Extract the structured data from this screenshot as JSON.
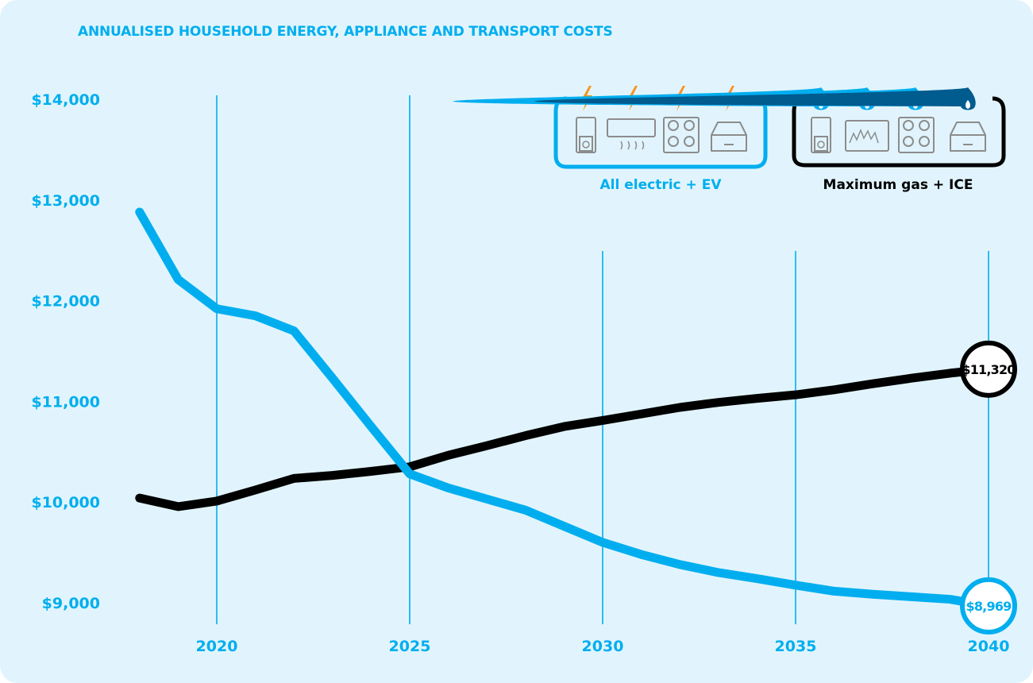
{
  "chart_data": {
    "type": "line",
    "title": "ANNUALISED HOUSEHOLD ENERGY, APPLIANCE AND TRANSPORT COSTS",
    "xlabel": "",
    "ylabel": "",
    "xlim": [
      2018,
      2040
    ],
    "ylim": [
      9000,
      14000
    ],
    "x_ticks": [
      "2020",
      "2025",
      "2030",
      "2035",
      "2040"
    ],
    "y_ticks": [
      "$9,000",
      "$10,000",
      "$11,000",
      "$12,000",
      "$13,000",
      "$14,000"
    ],
    "grid": "vertical lines at tick years",
    "x": [
      2018,
      2019,
      2020,
      2021,
      2022,
      2023,
      2024,
      2025,
      2026,
      2027,
      2028,
      2029,
      2030,
      2031,
      2032,
      2033,
      2034,
      2035,
      2036,
      2037,
      2038,
      2039,
      2040
    ],
    "series": [
      {
        "name": "All electric + EV",
        "color": "#00aeef",
        "icons": [
          "bolt-icon",
          "bolt-icon",
          "bolt-icon",
          "bolt-icon"
        ],
        "end_label": "$8,969",
        "values": [
          12880,
          12210,
          11920,
          11850,
          11700,
          11230,
          10750,
          10280,
          10140,
          10030,
          9920,
          9760,
          9600,
          9480,
          9380,
          9300,
          9240,
          9175,
          9115,
          9085,
          9060,
          9035,
          8969
        ]
      },
      {
        "name": "Maximum gas + ICE",
        "color": "#000000",
        "icons": [
          "flame-icon",
          "flame-icon",
          "flame-icon",
          "flame-icon"
        ],
        "end_label": "$11,320",
        "values": [
          10040,
          9955,
          10010,
          10120,
          10235,
          10265,
          10305,
          10350,
          10465,
          10560,
          10660,
          10750,
          10810,
          10875,
          10940,
          10990,
          11030,
          11065,
          11115,
          11175,
          11230,
          11280,
          11320
        ]
      }
    ]
  }
}
